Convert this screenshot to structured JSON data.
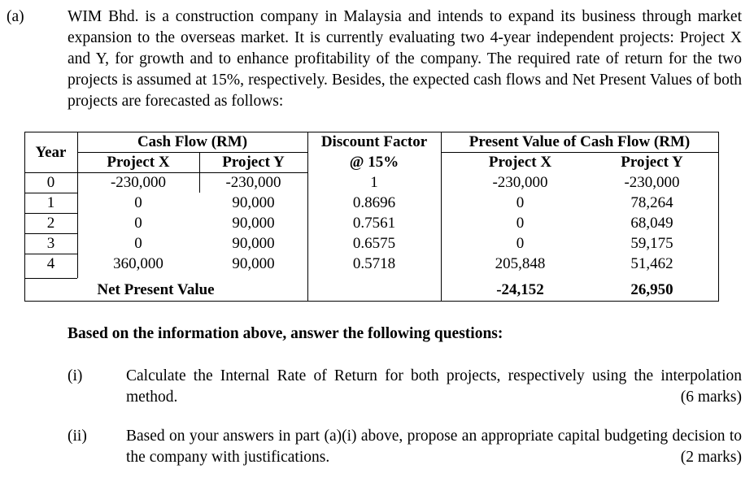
{
  "label": "(a)",
  "intro": "WIM Bhd. is a construction company in Malaysia and intends to expand its business through market expansion to the overseas market. It is currently evaluating two 4-year independent projects: Project X and Y, for growth and to enhance profitability of the company. The required rate of return for the two projects is assumed at 15%, respectively. Besides, the expected cash flows and Net Present Values of both projects are forecasted as follows:",
  "table": {
    "headers": {
      "year": "Year",
      "cash_flow": "Cash Flow (RM)",
      "discount_factor": "Discount Factor",
      "discount_rate": "@ 15%",
      "present_value": "Present Value of Cash Flow (RM)"
    },
    "cash_flow_subheaders": [
      "Project X",
      "Project Y"
    ],
    "present_value_subheaders": [
      "Project X",
      "Project Y"
    ],
    "rows": [
      [
        "0",
        "-230,000",
        "-230,000",
        "1",
        "-230,000",
        "-230,000"
      ],
      [
        "1",
        "0",
        "90,000",
        "0.8696",
        "0",
        "78,264"
      ],
      [
        "2",
        "0",
        "90,000",
        "0.7561",
        "0",
        "68,049"
      ],
      [
        "3",
        "0",
        "90,000",
        "0.6575",
        "0",
        "59,175"
      ],
      [
        "4",
        "360,000",
        "90,000",
        "0.5718",
        "205,848",
        "51,462"
      ]
    ],
    "npv_label": "Net Present Value",
    "npv": [
      "-24,152",
      "26,950"
    ]
  },
  "prompt": "Based on the information above, answer the following questions:",
  "questions": [
    {
      "number": "(i)",
      "text": "Calculate the Internal Rate of Return for both projects, respectively using the interpolation method.",
      "marks": "(6 marks)"
    },
    {
      "number": "(ii)",
      "text": "Based on your answers in part (a)(i) above, propose an appropriate capital budgeting decision to the company with justifications.",
      "marks": "(2 marks)"
    }
  ]
}
